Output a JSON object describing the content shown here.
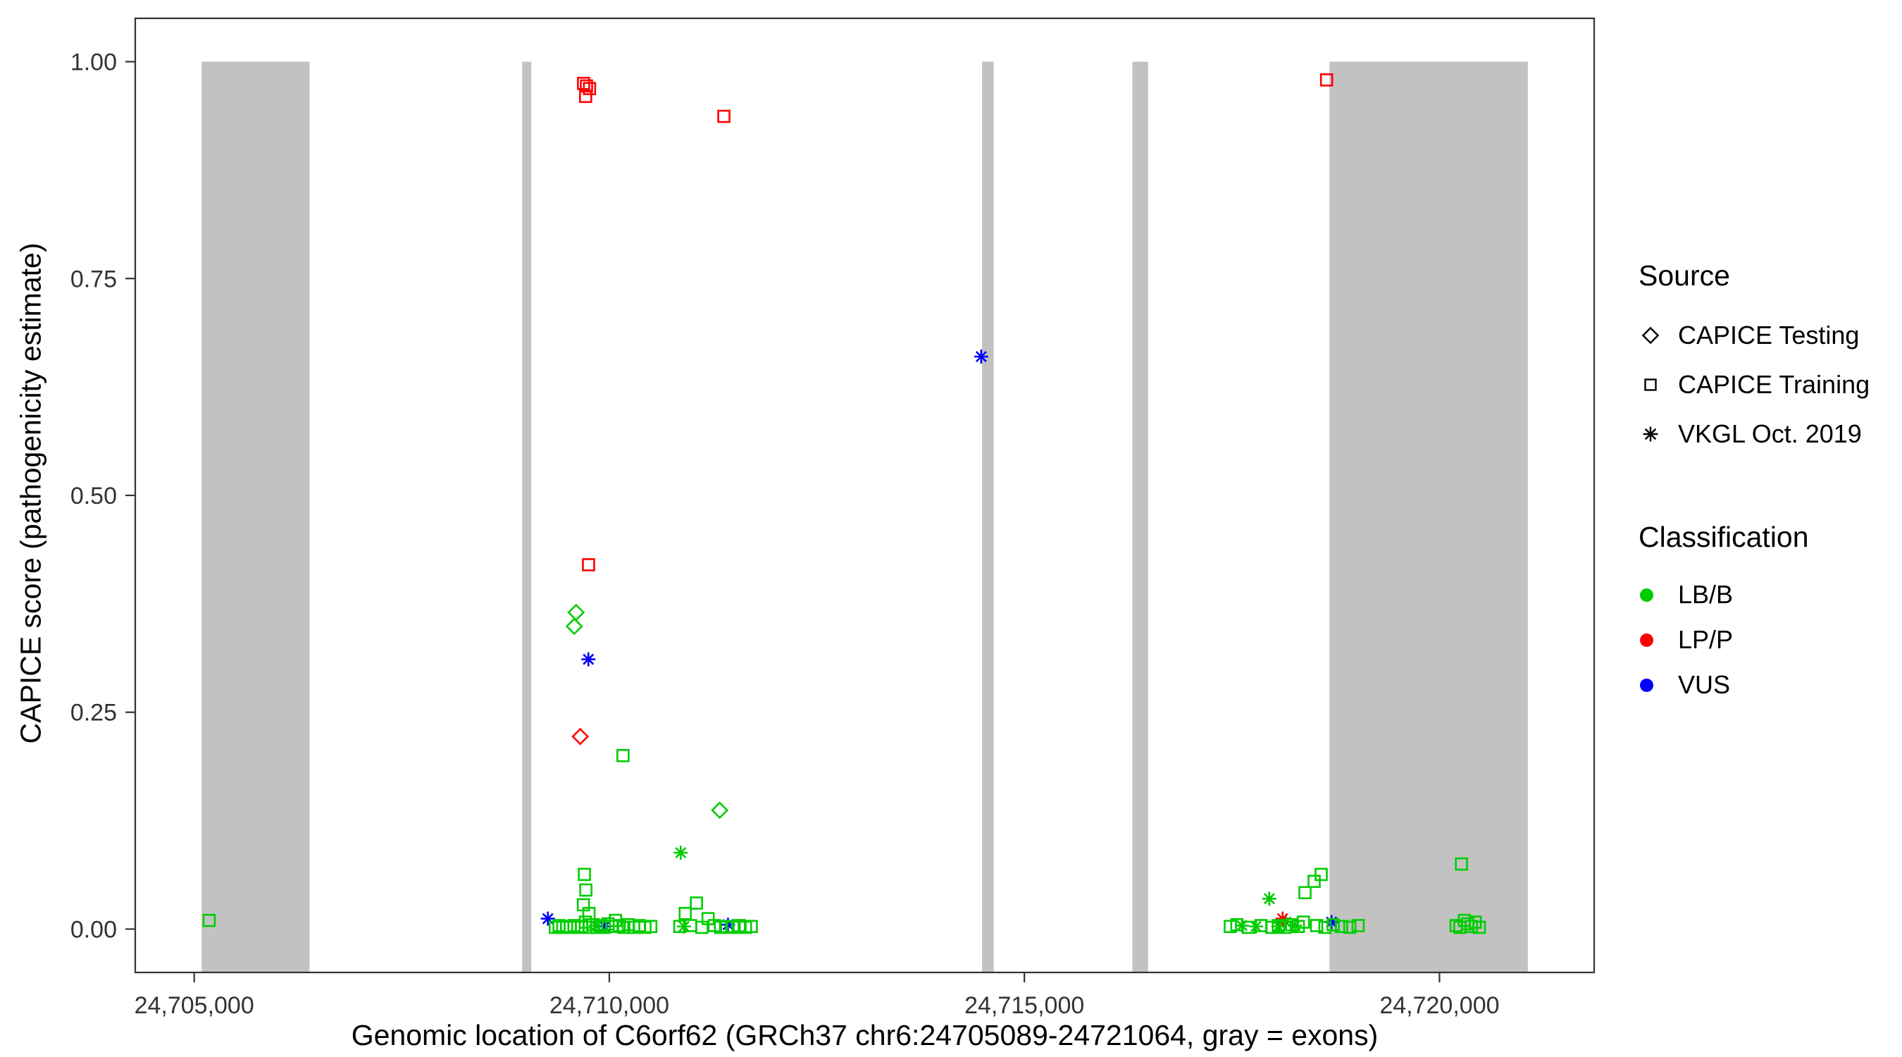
{
  "legend": {
    "source": {
      "title": "Source",
      "items": [
        {
          "label": "CAPICE Testing",
          "marker": "diamond"
        },
        {
          "label": "CAPICE Training",
          "marker": "square"
        },
        {
          "label": "VKGL Oct. 2019",
          "marker": "asterisk"
        }
      ]
    },
    "classification": {
      "title": "Classification",
      "items": [
        {
          "label": "LB/B",
          "color": "#00cd00"
        },
        {
          "label": "LP/P",
          "color": "#ff0000"
        },
        {
          "label": "VUS",
          "color": "#0000ff"
        }
      ]
    }
  },
  "chart_data": {
    "type": "scatter",
    "title": "",
    "xlabel": "Genomic location of C6orf62 (GRCh37 chr6:24705089-24721064, gray = exons)",
    "ylabel": "CAPICE score (pathogenicity estimate)",
    "xlim": [
      24704290,
      24721863
    ],
    "ylim": [
      -0.05,
      1.05
    ],
    "grid": false,
    "legend_position": "right",
    "x_ticks": [
      {
        "value": 24705000,
        "label": "24,705,000"
      },
      {
        "value": 24710000,
        "label": "24,710,000"
      },
      {
        "value": 24715000,
        "label": "24,715,000"
      },
      {
        "value": 24720000,
        "label": "24,720,000"
      }
    ],
    "y_ticks": [
      {
        "value": 0.0,
        "label": "0.00"
      },
      {
        "value": 0.25,
        "label": "0.25"
      },
      {
        "value": 0.5,
        "label": "0.50"
      },
      {
        "value": 0.75,
        "label": "0.75"
      },
      {
        "value": 1.0,
        "label": "1.00"
      }
    ],
    "exon_color": "#c2c2c2",
    "exons": [
      [
        24705089,
        24706390
      ],
      [
        24708950,
        24709060
      ],
      [
        24714490,
        24714630
      ],
      [
        24716300,
        24716490
      ],
      [
        24718675,
        24721064
      ]
    ],
    "series": [
      {
        "source": "CAPICE Training",
        "classification": "LP/P",
        "marker": "square",
        "color": "#ff0000",
        "points": [
          [
            24709690,
            0.975
          ],
          [
            24709725,
            0.972
          ],
          [
            24709762,
            0.969
          ],
          [
            24709715,
            0.96
          ],
          [
            24711380,
            0.937
          ],
          [
            24718640,
            0.979
          ],
          [
            24709750,
            0.42
          ]
        ]
      },
      {
        "source": "CAPICE Testing",
        "classification": "LP/P",
        "marker": "diamond",
        "color": "#ff0000",
        "points": [
          [
            24709650,
            0.222
          ]
        ]
      },
      {
        "source": "CAPICE Testing",
        "classification": "LB/B",
        "marker": "diamond",
        "color": "#00cd00",
        "points": [
          [
            24709600,
            0.365
          ],
          [
            24709578,
            0.349
          ],
          [
            24711330,
            0.137
          ]
        ]
      },
      {
        "source": "VKGL Oct. 2019",
        "classification": "VUS",
        "marker": "asterisk",
        "color": "#0000ff",
        "points": [
          [
            24709748,
            0.311
          ],
          [
            24714480,
            0.66
          ],
          [
            24709260,
            0.012
          ],
          [
            24709945,
            0.003
          ],
          [
            24711430,
            0.005
          ],
          [
            24718700,
            0.008
          ]
        ]
      },
      {
        "source": "VKGL Oct. 2019",
        "classification": "LB/B",
        "marker": "asterisk",
        "color": "#00cd00",
        "points": [
          [
            24710860,
            0.088
          ],
          [
            24709840,
            0.004
          ],
          [
            24710900,
            0.003
          ],
          [
            24717620,
            0.004
          ],
          [
            24717790,
            0.003
          ],
          [
            24717950,
            0.035
          ],
          [
            24718060,
            0.003
          ],
          [
            24718150,
            0.008
          ],
          [
            24718260,
            0.004
          ]
        ]
      },
      {
        "source": "VKGL Oct. 2019",
        "classification": "LP/P",
        "marker": "asterisk",
        "color": "#ff0000",
        "points": [
          [
            24718110,
            0.012
          ]
        ]
      },
      {
        "source": "CAPICE Training",
        "classification": "LB/B",
        "marker": "square",
        "color": "#00cd00",
        "points": [
          [
            24705180,
            0.01
          ],
          [
            24709350,
            0.002
          ],
          [
            24709395,
            0.004
          ],
          [
            24709440,
            0.002
          ],
          [
            24709485,
            0.003
          ],
          [
            24709530,
            0.002
          ],
          [
            24709575,
            0.004
          ],
          [
            24709620,
            0.002
          ],
          [
            24709665,
            0.003
          ],
          [
            24709700,
            0.063
          ],
          [
            24709718,
            0.045
          ],
          [
            24709688,
            0.028
          ],
          [
            24709755,
            0.018
          ],
          [
            24709712,
            0.008
          ],
          [
            24709760,
            0.002
          ],
          [
            24709805,
            0.005
          ],
          [
            24709850,
            0.002
          ],
          [
            24709895,
            0.004
          ],
          [
            24709940,
            0.002
          ],
          [
            24709985,
            0.006
          ],
          [
            24710030,
            0.003
          ],
          [
            24710075,
            0.01
          ],
          [
            24710120,
            0.004
          ],
          [
            24710165,
            0.2
          ],
          [
            24710175,
            0.002
          ],
          [
            24710230,
            0.005
          ],
          [
            24710295,
            0.002
          ],
          [
            24710360,
            0.004
          ],
          [
            24710430,
            0.002
          ],
          [
            24710500,
            0.003
          ],
          [
            24710850,
            0.003
          ],
          [
            24710915,
            0.018
          ],
          [
            24710980,
            0.004
          ],
          [
            24711050,
            0.03
          ],
          [
            24711115,
            0.002
          ],
          [
            24711190,
            0.012
          ],
          [
            24711265,
            0.004
          ],
          [
            24711340,
            0.002
          ],
          [
            24711415,
            0.003
          ],
          [
            24711490,
            0.002
          ],
          [
            24711565,
            0.004
          ],
          [
            24711640,
            0.002
          ],
          [
            24711710,
            0.003
          ],
          [
            24717480,
            0.003
          ],
          [
            24717560,
            0.005
          ],
          [
            24717700,
            0.002
          ],
          [
            24717850,
            0.004
          ],
          [
            24717980,
            0.002
          ],
          [
            24718060,
            0.004
          ],
          [
            24718140,
            0.002
          ],
          [
            24718220,
            0.005
          ],
          [
            24718300,
            0.003
          ],
          [
            24718360,
            0.008
          ],
          [
            24718380,
            0.042
          ],
          [
            24718490,
            0.055
          ],
          [
            24718575,
            0.063
          ],
          [
            24718520,
            0.004
          ],
          [
            24718620,
            0.002
          ],
          [
            24718720,
            0.005
          ],
          [
            24718820,
            0.003
          ],
          [
            24718920,
            0.002
          ],
          [
            24719020,
            0.004
          ],
          [
            24720200,
            0.004
          ],
          [
            24720245,
            0.002
          ],
          [
            24720265,
            0.075
          ],
          [
            24720300,
            0.01
          ],
          [
            24720340,
            0.006
          ],
          [
            24720385,
            0.003
          ],
          [
            24720430,
            0.008
          ],
          [
            24720480,
            0.002
          ]
        ]
      }
    ]
  }
}
